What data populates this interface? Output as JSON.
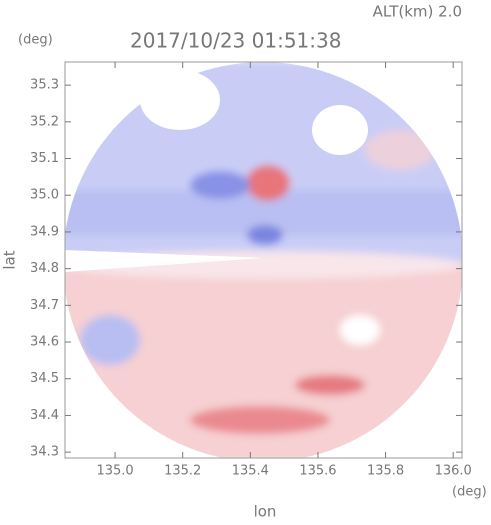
{
  "chart_data": {
    "type": "image",
    "title": "2017/10/23 01:51:38",
    "annotation": "ALT(km) 2.0",
    "x_label": "lon",
    "y_label": "lat",
    "x_unit": "(deg)",
    "y_unit": "(deg)",
    "xlim": [
      134.852,
      136.026
    ],
    "ylim": [
      34.284,
      35.363
    ],
    "xticks": [
      {
        "value": 135,
        "label": "135.0"
      },
      135.2,
      135.4,
      135.6,
      135.8,
      {
        "value": 136,
        "label": "136.0"
      }
    ],
    "yticks": [
      34.3,
      34.4,
      34.5,
      34.6,
      34.7,
      34.8,
      34.9,
      {
        "value": 35,
        "label": "35.0"
      },
      35.1,
      35.2,
      35.3
    ]
  }
}
